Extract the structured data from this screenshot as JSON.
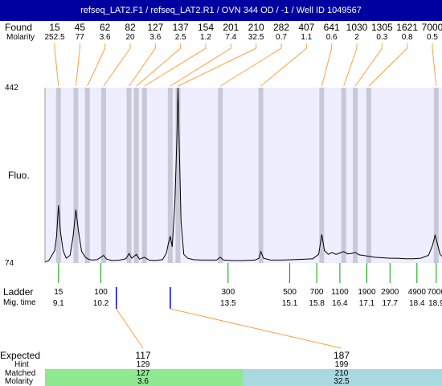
{
  "title": "refseq_LAT2.F1 / refseq_LAT2.R1 / OVN 344 OD / -1 / Well ID 1049567",
  "labels": {
    "found": "Found",
    "molarity": "Molarity",
    "fluo": "Fluo.",
    "ladder": "Ladder",
    "mig_time": "Mig. time",
    "expected": "Expected",
    "hint": "Hint",
    "matched": "Matched",
    "molarity_bottom": "Molarity"
  },
  "colors": {
    "title_bg": "#0000a0",
    "plot_bg": "#eeeeff",
    "band": "#c8c8d8",
    "marker": "#ffa040",
    "ladder_tick": "#00a000",
    "blue_tick": "#0000ff",
    "matched_left": "#90e890",
    "matched_right": "#a8d8e0"
  },
  "chart_data": {
    "type": "line",
    "y_top_label": "442",
    "y_bottom_label": "74",
    "ylim": [
      74,
      442
    ],
    "found_peaks": [
      {
        "size": "15",
        "molarity": "252.5",
        "x": 9.1
      },
      {
        "size": "45",
        "molarity": "77",
        "x": 9.55
      },
      {
        "size": "62",
        "molarity": "3.6",
        "x": 9.85
      },
      {
        "size": "82",
        "molarity": "20",
        "x": 10.27
      },
      {
        "size": "127",
        "molarity": "3.6",
        "x": 10.93
      },
      {
        "size": "137",
        "molarity": "2.5",
        "x": 11.12
      },
      {
        "size": "154",
        "molarity": "1.2",
        "x": 11.33
      },
      {
        "size": "201",
        "molarity": "7.4",
        "x": 12.0
      },
      {
        "size": "210",
        "molarity": "32.5",
        "x": 12.2
      },
      {
        "size": "282",
        "molarity": "0.7",
        "x": 13.3
      },
      {
        "size": "407",
        "molarity": "1.1",
        "x": 14.35
      },
      {
        "size": "641",
        "molarity": "0.6",
        "x": 15.93
      },
      {
        "size": "1030",
        "molarity": "2",
        "x": 16.5
      },
      {
        "size": "1305",
        "molarity": "0.3",
        "x": 16.8
      },
      {
        "size": "1621",
        "molarity": "0.8",
        "x": 17.15
      },
      {
        "size": "7000",
        "molarity": "0.5",
        "x": 18.9
      }
    ],
    "ladder": [
      {
        "size": "15",
        "time": "9.1",
        "x": 9.1
      },
      {
        "size": "100",
        "time": "10.2",
        "x": 10.2
      },
      {
        "size": "300",
        "time": "13.5",
        "x": 13.5
      },
      {
        "size": "500",
        "time": "15.1",
        "x": 15.1
      },
      {
        "size": "700",
        "time": "15.8",
        "x": 15.8
      },
      {
        "size": "1100",
        "time": "16.4",
        "x": 16.4
      },
      {
        "size": "1900",
        "time": "17.1",
        "x": 17.1
      },
      {
        "size": "2900",
        "time": "17.7",
        "x": 17.7
      },
      {
        "size": "4900",
        "time": "18.4",
        "x": 18.4
      },
      {
        "size": "7000",
        "time": "18.9",
        "x": 18.9
      }
    ],
    "trace": [
      [
        8.75,
        76
      ],
      [
        8.85,
        79
      ],
      [
        9.0,
        100
      ],
      [
        9.05,
        130
      ],
      [
        9.1,
        195
      ],
      [
        9.15,
        140
      ],
      [
        9.22,
        100
      ],
      [
        9.3,
        84
      ],
      [
        9.4,
        90
      ],
      [
        9.48,
        130
      ],
      [
        9.55,
        186
      ],
      [
        9.62,
        140
      ],
      [
        9.7,
        98
      ],
      [
        9.8,
        86
      ],
      [
        9.85,
        83
      ],
      [
        9.95,
        80
      ],
      [
        10.1,
        81
      ],
      [
        10.2,
        86
      ],
      [
        10.27,
        90
      ],
      [
        10.35,
        82
      ],
      [
        10.5,
        79
      ],
      [
        10.7,
        80
      ],
      [
        10.85,
        83
      ],
      [
        10.93,
        94
      ],
      [
        11.0,
        84
      ],
      [
        11.12,
        92
      ],
      [
        11.2,
        82
      ],
      [
        11.33,
        86
      ],
      [
        11.45,
        80
      ],
      [
        11.6,
        79
      ],
      [
        11.8,
        81
      ],
      [
        11.9,
        95
      ],
      [
        11.95,
        115
      ],
      [
        12.0,
        130
      ],
      [
        12.05,
        108
      ],
      [
        12.12,
        200
      ],
      [
        12.17,
        330
      ],
      [
        12.2,
        442
      ],
      [
        12.23,
        330
      ],
      [
        12.28,
        160
      ],
      [
        12.35,
        92
      ],
      [
        12.45,
        84
      ],
      [
        12.6,
        81
      ],
      [
        12.8,
        80
      ],
      [
        13.0,
        80
      ],
      [
        13.2,
        80
      ],
      [
        13.3,
        86
      ],
      [
        13.38,
        80
      ],
      [
        13.6,
        79
      ],
      [
        13.9,
        79
      ],
      [
        14.2,
        80
      ],
      [
        14.3,
        84
      ],
      [
        14.35,
        98
      ],
      [
        14.42,
        84
      ],
      [
        14.6,
        80
      ],
      [
        14.9,
        80
      ],
      [
        15.2,
        81
      ],
      [
        15.5,
        82
      ],
      [
        15.7,
        83
      ],
      [
        15.85,
        92
      ],
      [
        15.93,
        134
      ],
      [
        16.0,
        100
      ],
      [
        16.1,
        92
      ],
      [
        16.2,
        96
      ],
      [
        16.3,
        92
      ],
      [
        16.4,
        95
      ],
      [
        16.5,
        98
      ],
      [
        16.6,
        93
      ],
      [
        16.7,
        94
      ],
      [
        16.8,
        96
      ],
      [
        16.9,
        91
      ],
      [
        17.0,
        90
      ],
      [
        17.15,
        88
      ],
      [
        17.3,
        86
      ],
      [
        17.5,
        85
      ],
      [
        17.7,
        84
      ],
      [
        17.9,
        84
      ],
      [
        18.1,
        83
      ],
      [
        18.3,
        83
      ],
      [
        18.5,
        84
      ],
      [
        18.7,
        90
      ],
      [
        18.8,
        110
      ],
      [
        18.87,
        132
      ],
      [
        18.93,
        115
      ],
      [
        19.0,
        92
      ],
      [
        19.05,
        88
      ]
    ],
    "expected_peaks": [
      {
        "expected": "117",
        "hint": "129",
        "matched": "127",
        "molarity": "3.6",
        "x": 10.6
      },
      {
        "expected": "187",
        "hint": "199",
        "matched": "210",
        "molarity": "32.5",
        "x": 12.0
      }
    ]
  }
}
